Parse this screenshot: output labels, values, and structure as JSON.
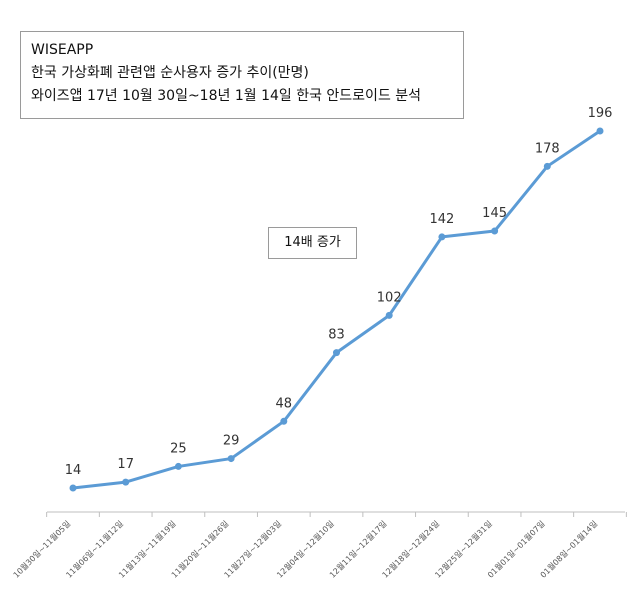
{
  "title_box": {
    "line1": "WISEAPP",
    "line2": "한국 가상화폐 관련앱 순사용자 증가 추이(만명)",
    "line3": "와이즈앱 17년 10월 30일~18년 1월 14일 한국 안드로이드 분석"
  },
  "annotation": "14배 증가",
  "colors": {
    "line": "#5B9BD5",
    "axis": "#bfbfbf"
  },
  "chart_data": {
    "type": "line",
    "title": "한국 가상화폐 관련앱 순사용자 증가 추이(만명)",
    "categories": [
      "10월30일~11월05일",
      "11월06일~11월12일",
      "11월13일~11월19일",
      "11월20일~11월26일",
      "11월27일~12월03일",
      "12월04일~12월10일",
      "12월11일~12월17일",
      "12월18일~12월24일",
      "12월25일~12월31일",
      "01월01일~01월07일",
      "01월08일~01월14일"
    ],
    "values": [
      14,
      17,
      25,
      29,
      48,
      83,
      102,
      142,
      145,
      178,
      196
    ],
    "ylim": [
      0,
      200
    ],
    "grid": false,
    "legend": "none"
  }
}
